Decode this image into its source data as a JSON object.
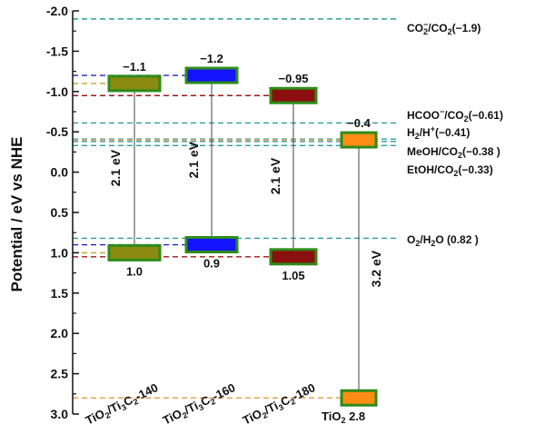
{
  "chart_data": {
    "type": "band-diagram",
    "ylabel": "Potential / eV vs NHE",
    "ylim": [
      -2.0,
      3.0
    ],
    "y_inverted": true,
    "yticks": [
      {
        "value": -2.0,
        "label": "-2.0"
      },
      {
        "value": -1.5,
        "label": "-1.5"
      },
      {
        "value": -1.0,
        "label": "-1.0"
      },
      {
        "value": -0.5,
        "label": "-0.5"
      },
      {
        "value": 0.0,
        "label": "0.0"
      },
      {
        "value": 0.5,
        "label": "0.5"
      },
      {
        "value": 1.0,
        "label": "1.0"
      },
      {
        "value": 1.5,
        "label": "1.5"
      },
      {
        "value": 2.0,
        "label": "2.0"
      },
      {
        "value": 2.5,
        "label": "2.5"
      },
      {
        "value": 3.0,
        "label": "3.0"
      }
    ],
    "materials": [
      {
        "category": "TiO2/Ti3C2-140",
        "cat_base": "TiO",
        "cat_sub1": "2",
        "cat_mid": "/Ti",
        "cat_sub2": "3",
        "cat_mid2": "C",
        "cat_sub3": "2",
        "cat_tail": "-140",
        "cb": -1.1,
        "cb_label": "−1.1",
        "vb": 1.0,
        "vb_label": "1.0",
        "gap_label": "2.1 eV",
        "color": "#8a8a10",
        "line_color": "#c8a028"
      },
      {
        "category": "TiO2/Ti3C2-160",
        "cat_base": "TiO",
        "cat_sub1": "2",
        "cat_mid": "/Ti",
        "cat_sub2": "3",
        "cat_mid2": "C",
        "cat_sub3": "2",
        "cat_tail": "-160",
        "cb": -1.2,
        "cb_label": "−1.2",
        "vb": 0.9,
        "vb_label": "0.9",
        "gap_label": "2.1 eV",
        "color": "#1414ff",
        "line_color": "#2020d0"
      },
      {
        "category": "TiO2/Ti3C2-180",
        "cat_base": "TiO",
        "cat_sub1": "2",
        "cat_mid": "/Ti",
        "cat_sub2": "3",
        "cat_mid2": "C",
        "cat_sub3": "2",
        "cat_tail": "-180",
        "cb": -0.95,
        "cb_label": "−0.95",
        "vb": 1.05,
        "vb_label": "1.05",
        "gap_label": "2.1 eV",
        "color": "#8b0f0f",
        "line_color": "#a01818"
      },
      {
        "category": "TiO2",
        "cat_base": "TiO",
        "cat_sub1": "2",
        "cb": -0.4,
        "cb_label": "−0.4",
        "vb": 2.8,
        "vb_label": "2.8",
        "gap_label": "3.2 eV",
        "color": "#ff8c14",
        "line_color": "#e8a050"
      }
    ],
    "reference_levels": [
      {
        "name": "CO2−/CO2",
        "value": -1.9,
        "value_label": "(−1.9)",
        "parts": [
          "CO",
          "2",
          "−",
          "/CO",
          "2",
          "(−1.9)"
        ]
      },
      {
        "name": "HCOO−/CO2",
        "value": -0.61,
        "value_label": "(−0.61)",
        "parts": [
          "HCOO",
          "",
          "−",
          "/CO",
          "2",
          "(−0.61)"
        ]
      },
      {
        "name": "H2/H+",
        "value": -0.41,
        "value_label": "(−0.41)",
        "parts": [
          "H",
          "2",
          "+",
          "/H",
          "",
          "(−0.41)"
        ]
      },
      {
        "name": "MeOH/CO2",
        "value": -0.38,
        "value_label": "(−0.38 )",
        "parts": [
          "MeOH/CO",
          "2",
          "",
          "",
          "",
          "(−0.38 )"
        ]
      },
      {
        "name": "EtOH/CO2",
        "value": -0.33,
        "value_label": "(−0.33)",
        "parts": [
          "EtOH/CO",
          "2",
          "",
          "",
          "",
          "(−0.33)"
        ]
      },
      {
        "name": "O2/H2O",
        "value": 0.82,
        "value_label": "(0.82 )",
        "parts": [
          "O",
          "2",
          "",
          "/H",
          "2",
          "O (0.82 )"
        ]
      }
    ],
    "ref_line_color": "#2a9d9d",
    "box_border_color": "#2e8b1a"
  }
}
